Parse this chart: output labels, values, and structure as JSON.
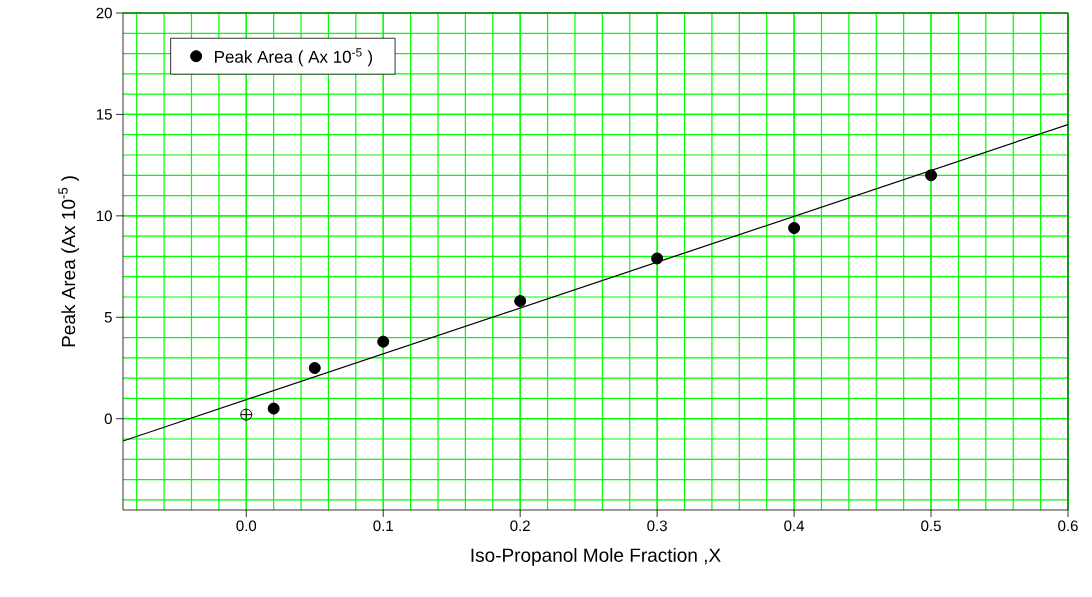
{
  "chart_data": {
    "type": "scatter",
    "xlabel": "Iso-Propanol Mole Fraction ,X",
    "ylabel": "Peak Area (Ax 10$^{-5}$ )",
    "xlim": [
      -0.09,
      0.6
    ],
    "ylim": [
      -4.5,
      20
    ],
    "xticks": [
      {
        "value": 0,
        "label": "0.0"
      },
      {
        "value": 0.1,
        "label": "0.1"
      },
      {
        "value": 0.2,
        "label": "0.2"
      },
      {
        "value": 0.3,
        "label": "0.3"
      },
      {
        "value": 0.4,
        "label": "0.4"
      },
      {
        "value": 0.5,
        "label": "0.5"
      },
      {
        "value": 0.6,
        "label": "0.6"
      }
    ],
    "yticks": [
      0,
      5,
      10,
      15,
      20
    ],
    "grid": true,
    "legend": "top left",
    "series": [
      {
        "name": "Peak Area ( Ax 10$^{-5}$ )",
        "color": "#000000",
        "marker": "circle",
        "x": [
          0.02,
          0.05,
          0.1,
          0.2,
          0.3,
          0.4,
          0.5
        ],
        "values": [
          0.5,
          2.5,
          3.8,
          5.8,
          7.9,
          9.4,
          12.0
        ]
      },
      {
        "color": "#000000",
        "marker": "cross",
        "x": [
          0
        ],
        "values": [
          0.2
        ]
      },
      {
        "type": "line",
        "color": "#000000",
        "marker": "none",
        "x": [
          -0.09,
          0.6
        ],
        "values": [
          -1.1,
          14.5
        ]
      }
    ]
  }
}
